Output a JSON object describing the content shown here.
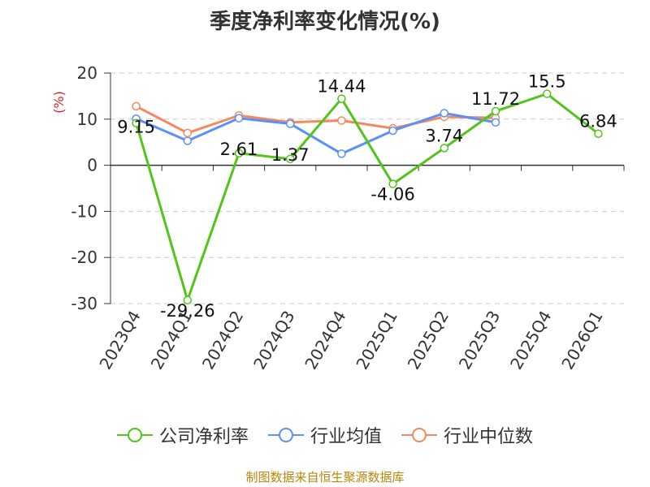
{
  "chart_data": {
    "type": "line",
    "title": "季度净利率变化情况(%)",
    "ylabel": "(%)",
    "categories": [
      "2023Q4",
      "2024Q1",
      "2024Q2",
      "2024Q3",
      "2024Q4",
      "2025Q1",
      "2025Q2",
      "2025Q3",
      "2025Q4",
      "2026Q1"
    ],
    "ylim": [
      -30,
      20
    ],
    "yticks": [
      20,
      10,
      0,
      -10,
      -20,
      -30
    ],
    "grid": true,
    "legend_position": "bottom",
    "series": [
      {
        "name": "公司净利率",
        "color": "#52c41a",
        "values": [
          9.15,
          -29.26,
          2.61,
          1.37,
          14.44,
          -4.06,
          3.74,
          11.72,
          15.5,
          6.84
        ],
        "labels": [
          "9.15",
          "-29.26",
          "2.61",
          "1.37",
          "14.44",
          "-4.06",
          "3.74",
          "11.72",
          "15.5",
          "6.84"
        ]
      },
      {
        "name": "行业均值",
        "color": "#5b8ff9",
        "values": [
          10.1,
          5.3,
          10.2,
          9.0,
          2.5,
          7.5,
          11.3,
          9.3,
          null,
          null
        ]
      },
      {
        "name": "行业中位数",
        "color": "#f4895f",
        "values": [
          12.8,
          7.0,
          10.8,
          9.3,
          9.7,
          8.0,
          10.5,
          10.3,
          null,
          null
        ]
      }
    ]
  },
  "source": "制图数据来自恒生聚源数据库"
}
